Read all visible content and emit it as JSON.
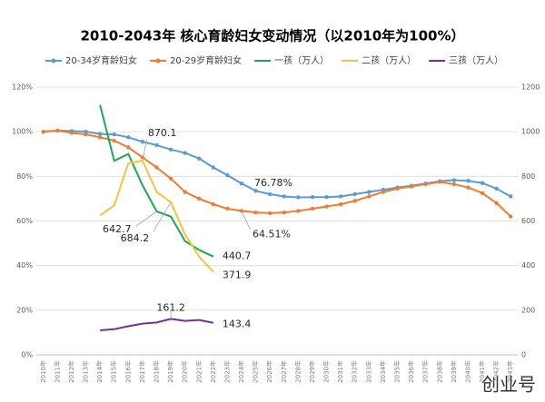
{
  "chart_data": {
    "type": "line",
    "title": "2010-2043年 核心育龄妇女变动情况（以2010年为100%）",
    "categories": [
      "2010年",
      "2011年",
      "2012年",
      "2013年",
      "2014年",
      "2015年",
      "2016年",
      "2017年",
      "2018年",
      "2019年",
      "2020年",
      "2021年",
      "2022年",
      "2023年",
      "2024年",
      "2025年",
      "2026年",
      "2027年",
      "2028年",
      "2029年",
      "2030年",
      "2031年",
      "2032年",
      "2033年",
      "2034年",
      "2035年",
      "2036年",
      "2037年",
      "2038年",
      "2039年",
      "2040年",
      "2041年",
      "2042年",
      "2043年"
    ],
    "ylim": [
      0,
      120
    ],
    "yticks": [
      {
        "value": 0,
        "label": "0%"
      },
      {
        "value": 20,
        "label": "20%"
      },
      {
        "value": 40,
        "label": "40%"
      },
      {
        "value": 60,
        "label": "60%"
      },
      {
        "value": 80,
        "label": "80%"
      },
      {
        "value": 100,
        "label": "100%"
      },
      {
        "value": 120,
        "label": "120%"
      }
    ],
    "y2lim": [
      0,
      1200
    ],
    "y2ticks": [
      0,
      200,
      400,
      600,
      800,
      1000,
      1200
    ],
    "grid": true,
    "legend": "top",
    "series": [
      {
        "name": "20-34岁育龄妇女",
        "color": "#5b9bd5",
        "values": [
          100,
          100.5,
          100.3,
          100,
          99,
          98.8,
          97.5,
          95.5,
          94,
          92,
          90.5,
          88,
          84,
          80.5,
          76.78,
          73.5,
          72,
          71,
          70.6,
          70.7,
          70.7,
          71,
          72,
          73,
          74,
          75,
          75.8,
          76.8,
          77.8,
          78.3,
          78,
          77,
          74.5,
          71
        ],
        "value_labels": [
          null,
          null,
          null,
          null,
          null,
          null,
          null,
          null,
          null,
          null,
          null,
          null,
          null,
          null,
          "76.78%",
          null,
          null,
          null,
          null,
          null,
          null,
          null,
          null,
          null,
          null,
          null,
          null,
          null,
          null,
          null,
          null,
          null,
          null,
          null
        ]
      },
      {
        "name": "20-29岁育龄妇女",
        "color": "#ed7d31",
        "values": [
          100,
          100.5,
          99.5,
          98.8,
          97.5,
          96,
          93,
          88.5,
          84,
          79,
          73,
          70,
          67.5,
          65.5,
          64.51,
          63.8,
          63.5,
          63.8,
          64.5,
          65.5,
          66.5,
          67.5,
          69,
          71,
          73,
          74.5,
          75.5,
          76.5,
          77.5,
          76.5,
          75,
          72.5,
          68,
          62
        ],
        "value_labels": [
          null,
          null,
          null,
          null,
          null,
          null,
          null,
          null,
          null,
          null,
          null,
          null,
          null,
          null,
          "64.51%",
          null,
          null,
          null,
          null,
          null,
          null,
          null,
          null,
          null,
          null,
          null,
          null,
          null,
          null,
          null,
          null,
          null,
          null,
          null
        ]
      },
      {
        "name": "一孩（万人）",
        "color": "#1aaa55",
        "axis": "y2",
        "values": [
          null,
          null,
          null,
          null,
          1120,
          870,
          900,
          760,
          642.7,
          620,
          510,
          470,
          440.7,
          null,
          null,
          null,
          null,
          null,
          null,
          null,
          null,
          null,
          null,
          null,
          null,
          null,
          null,
          null,
          null,
          null,
          null,
          null,
          null,
          null
        ],
        "value_labels": [
          null,
          null,
          null,
          null,
          null,
          null,
          null,
          null,
          "642.7",
          null,
          null,
          null,
          "440.7",
          null,
          null,
          null,
          null,
          null,
          null,
          null,
          null,
          null,
          null,
          null,
          null,
          null,
          null,
          null,
          null,
          null,
          null,
          null,
          null,
          null
        ]
      },
      {
        "name": "二孩（万人）",
        "color": "#f5c342",
        "axis": "y2",
        "values": [
          null,
          null,
          null,
          null,
          625,
          670,
          860,
          870.1,
          730,
          684.2,
          540,
          440,
          371.9,
          null,
          null,
          null,
          null,
          null,
          null,
          null,
          null,
          null,
          null,
          null,
          null,
          null,
          null,
          null,
          null,
          null,
          null,
          null,
          null,
          null
        ],
        "value_labels": [
          null,
          null,
          null,
          null,
          null,
          null,
          null,
          "870.1",
          null,
          "684.2",
          null,
          null,
          "371.9",
          null,
          null,
          null,
          null,
          null,
          null,
          null,
          null,
          null,
          null,
          null,
          null,
          null,
          null,
          null,
          null,
          null,
          null,
          null,
          null,
          null
        ]
      },
      {
        "name": "三孩（万人）",
        "color": "#7030a0",
        "axis": "y2",
        "values": [
          null,
          null,
          null,
          null,
          110,
          115,
          128,
          140,
          145,
          161.2,
          152,
          156,
          143.4,
          null,
          null,
          null,
          null,
          null,
          null,
          null,
          null,
          null,
          null,
          null,
          null,
          null,
          null,
          null,
          null,
          null,
          null,
          null,
          null,
          null
        ],
        "value_labels": [
          null,
          null,
          null,
          null,
          null,
          null,
          null,
          null,
          null,
          "161.2",
          null,
          null,
          "143.4",
          null,
          null,
          null,
          null,
          null,
          null,
          null,
          null,
          null,
          null,
          null,
          null,
          null,
          null,
          null,
          null,
          null,
          null,
          null,
          null,
          null
        ]
      }
    ]
  },
  "watermark": "创业号"
}
